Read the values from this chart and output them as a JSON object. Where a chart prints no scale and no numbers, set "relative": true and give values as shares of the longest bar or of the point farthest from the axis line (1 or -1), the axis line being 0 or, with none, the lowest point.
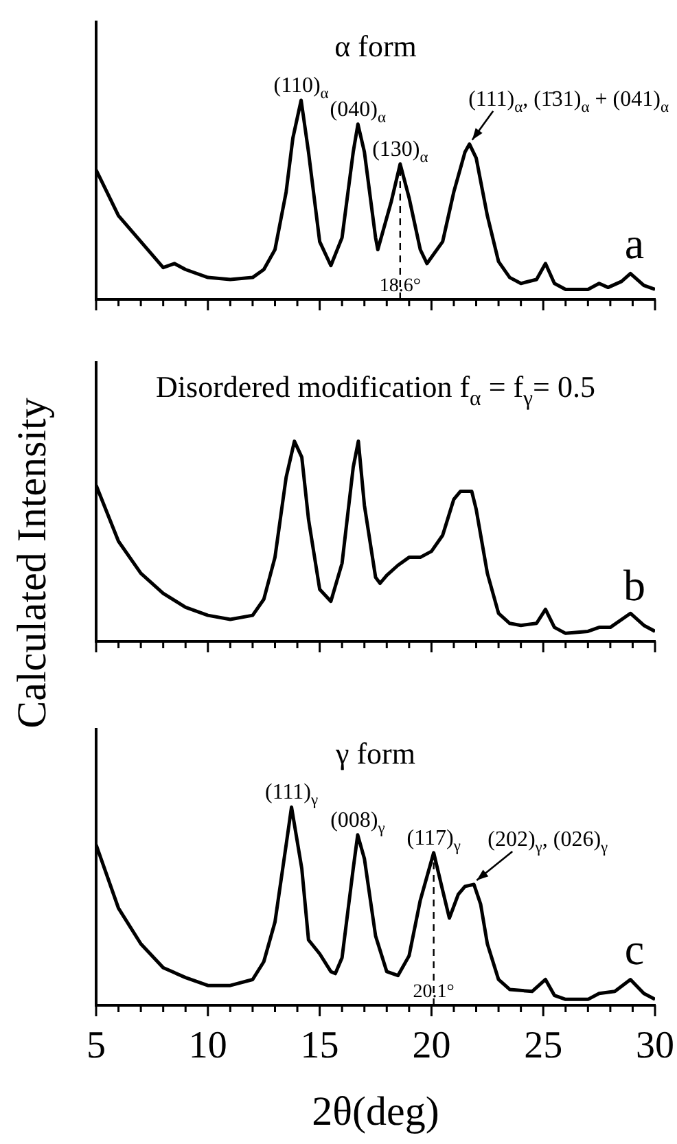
{
  "chart_data": [
    {
      "type": "line",
      "title": "α form",
      "relative": true,
      "color": "#000000",
      "tick_labels": false,
      "xlim": [
        5,
        30
      ],
      "xticks": [
        5,
        {
          "value": 6,
          "label": null
        },
        {
          "value": 7,
          "label": null
        },
        {
          "value": 8,
          "label": null
        },
        {
          "value": 9,
          "label": null
        },
        10,
        {
          "value": 11,
          "label": null
        },
        {
          "value": 12,
          "label": null
        },
        {
          "value": 13,
          "label": null
        },
        {
          "value": 14,
          "label": null
        },
        15,
        {
          "value": 16,
          "label": null
        },
        {
          "value": 17,
          "label": null
        },
        {
          "value": 18,
          "label": null
        },
        {
          "value": 19,
          "label": null
        },
        20,
        {
          "value": 21,
          "label": null
        },
        {
          "value": 22,
          "label": null
        },
        {
          "value": 23,
          "label": null
        },
        {
          "value": 24,
          "label": null
        },
        25,
        {
          "value": 26,
          "label": null
        },
        {
          "value": 27,
          "label": null
        },
        {
          "value": 28,
          "label": null
        },
        {
          "value": 29,
          "label": null
        },
        30
      ],
      "x": [
        5,
        6,
        7,
        8,
        8.5,
        9,
        10,
        11,
        12,
        12.5,
        13,
        13.5,
        13.8,
        14.17,
        14.5,
        15,
        15.5,
        16,
        16.5,
        16.71,
        17,
        17.5,
        17.6,
        18.2,
        18.6,
        19,
        19.5,
        19.8,
        20.5,
        21,
        21.5,
        21.7,
        22,
        22.5,
        23,
        23.5,
        24,
        24.7,
        25.1,
        25.5,
        26,
        27,
        27.5,
        27.9,
        28.5,
        28.9,
        29.5,
        30
      ],
      "values": [
        0.65,
        0.42,
        0.29,
        0.16,
        0.18,
        0.15,
        0.11,
        0.1,
        0.11,
        0.15,
        0.25,
        0.54,
        0.81,
        1,
        0.74,
        0.29,
        0.17,
        0.31,
        0.74,
        0.88,
        0.74,
        0.31,
        0.25,
        0.49,
        0.68,
        0.51,
        0.25,
        0.18,
        0.29,
        0.54,
        0.74,
        0.78,
        0.71,
        0.42,
        0.19,
        0.11,
        0.08,
        0.1,
        0.18,
        0.08,
        0.05,
        0.05,
        0.08,
        0.06,
        0.09,
        0.13,
        0.07,
        0.05
      ],
      "ref_lines": [
        {
          "axis": "x",
          "value": 18.6,
          "label": "18.6°",
          "line_style": "dashed"
        }
      ],
      "annotations": [
        {
          "text": "(110)$_{α}$",
          "x": 14.17,
          "y": 1
        },
        {
          "text": "(040)$_{α}$",
          "x": 16.71,
          "y": 0.88
        },
        {
          "text": "(130)$_{α}$",
          "x": 18.6,
          "y": 0.68
        },
        {
          "text": "(111)$_{α}$, (1̄31)$_{α}$ + (041)$_{α}$",
          "x": 21.7,
          "y": 0.78
        },
        "a"
      ]
    },
    {
      "type": "line",
      "title": "Disordered modification f$_{α}$ = f$_{γ}$= 0.5",
      "relative": true,
      "color": "#000000",
      "tick_labels": false,
      "xlim": [
        5,
        30
      ],
      "ylabel": "Calculated Intensity",
      "xticks": [
        5,
        {
          "value": 6,
          "label": null
        },
        {
          "value": 7,
          "label": null
        },
        {
          "value": 8,
          "label": null
        },
        {
          "value": 9,
          "label": null
        },
        10,
        {
          "value": 11,
          "label": null
        },
        {
          "value": 12,
          "label": null
        },
        {
          "value": 13,
          "label": null
        },
        {
          "value": 14,
          "label": null
        },
        15,
        {
          "value": 16,
          "label": null
        },
        {
          "value": 17,
          "label": null
        },
        {
          "value": 18,
          "label": null
        },
        {
          "value": 19,
          "label": null
        },
        20,
        {
          "value": 21,
          "label": null
        },
        {
          "value": 22,
          "label": null
        },
        {
          "value": 23,
          "label": null
        },
        {
          "value": 24,
          "label": null
        },
        25,
        {
          "value": 26,
          "label": null
        },
        {
          "value": 27,
          "label": null
        },
        {
          "value": 28,
          "label": null
        },
        {
          "value": 29,
          "label": null
        },
        30
      ],
      "x": [
        5,
        6,
        7,
        8,
        9,
        10,
        11,
        12,
        12.5,
        13,
        13.5,
        13.87,
        14.2,
        14.5,
        15,
        15.5,
        16,
        16.5,
        16.73,
        17,
        17.5,
        17.7,
        18,
        18.5,
        19,
        19.5,
        20,
        20.5,
        21,
        21.3,
        21.8,
        22,
        22.5,
        23,
        23.5,
        24,
        24.7,
        25.1,
        25.5,
        26,
        27,
        27.5,
        28,
        28.9,
        29.5,
        30
      ],
      "values": [
        0.78,
        0.5,
        0.34,
        0.24,
        0.17,
        0.13,
        0.11,
        0.13,
        0.21,
        0.42,
        0.82,
        1,
        0.92,
        0.61,
        0.26,
        0.2,
        0.39,
        0.87,
        1,
        0.68,
        0.32,
        0.29,
        0.33,
        0.38,
        0.42,
        0.42,
        0.45,
        0.53,
        0.71,
        0.75,
        0.75,
        0.66,
        0.34,
        0.14,
        0.09,
        0.08,
        0.09,
        0.16,
        0.07,
        0.04,
        0.05,
        0.07,
        0.07,
        0.14,
        0.08,
        0.05
      ],
      "annotations": [
        "b"
      ]
    },
    {
      "type": "line",
      "title": "γ form",
      "relative": true,
      "color": "#000000",
      "tick_labels": "x",
      "xlim": [
        5,
        30
      ],
      "xlabel": "2θ(deg)",
      "xticks": [
        5,
        {
          "value": 6,
          "label": null
        },
        {
          "value": 7,
          "label": null
        },
        {
          "value": 8,
          "label": null
        },
        {
          "value": 9,
          "label": null
        },
        10,
        {
          "value": 11,
          "label": null
        },
        {
          "value": 12,
          "label": null
        },
        {
          "value": 13,
          "label": null
        },
        {
          "value": 14,
          "label": null
        },
        15,
        {
          "value": 16,
          "label": null
        },
        {
          "value": 17,
          "label": null
        },
        {
          "value": 18,
          "label": null
        },
        {
          "value": 19,
          "label": null
        },
        20,
        {
          "value": 21,
          "label": null
        },
        {
          "value": 22,
          "label": null
        },
        {
          "value": 23,
          "label": null
        },
        {
          "value": 24,
          "label": null
        },
        25,
        {
          "value": 26,
          "label": null
        },
        {
          "value": 27,
          "label": null
        },
        {
          "value": 28,
          "label": null
        },
        {
          "value": 29,
          "label": null
        },
        30
      ],
      "x": [
        5,
        6,
        7,
        8,
        9,
        10,
        11,
        12,
        12.5,
        13,
        13.5,
        13.74,
        14.2,
        14.5,
        15,
        15.5,
        15.7,
        16,
        16.5,
        16.7,
        17,
        17.5,
        18,
        18.5,
        19,
        19.5,
        20.1,
        20.5,
        20.8,
        21.2,
        21.5,
        21.9,
        22.2,
        22.5,
        23,
        23.5,
        24.5,
        25.1,
        25.5,
        26,
        27,
        27.5,
        28.2,
        28.9,
        29.5,
        30
      ],
      "values": [
        0.81,
        0.49,
        0.31,
        0.19,
        0.14,
        0.1,
        0.1,
        0.13,
        0.22,
        0.42,
        0.81,
        1,
        0.69,
        0.33,
        0.26,
        0.17,
        0.16,
        0.24,
        0.69,
        0.86,
        0.74,
        0.35,
        0.17,
        0.15,
        0.25,
        0.53,
        0.77,
        0.58,
        0.44,
        0.56,
        0.6,
        0.61,
        0.51,
        0.31,
        0.13,
        0.08,
        0.07,
        0.13,
        0.05,
        0.03,
        0.03,
        0.06,
        0.07,
        0.13,
        0.06,
        0.03
      ],
      "ref_lines": [
        {
          "axis": "x",
          "value": 20.1,
          "label": "20.1°",
          "line_style": "dashed"
        }
      ],
      "annotations": [
        {
          "text": "(111)$_{γ}$",
          "x": 13.74,
          "y": 1
        },
        {
          "text": "(008)$_{γ}$",
          "x": 16.7,
          "y": 0.86
        },
        {
          "text": "(117)$_{γ}$",
          "x": 20.1,
          "y": 0.77
        },
        {
          "text": "(202)$_{γ}$, (026)$_{γ}$",
          "x": 21.9,
          "y": 0.61
        },
        "c"
      ]
    }
  ]
}
